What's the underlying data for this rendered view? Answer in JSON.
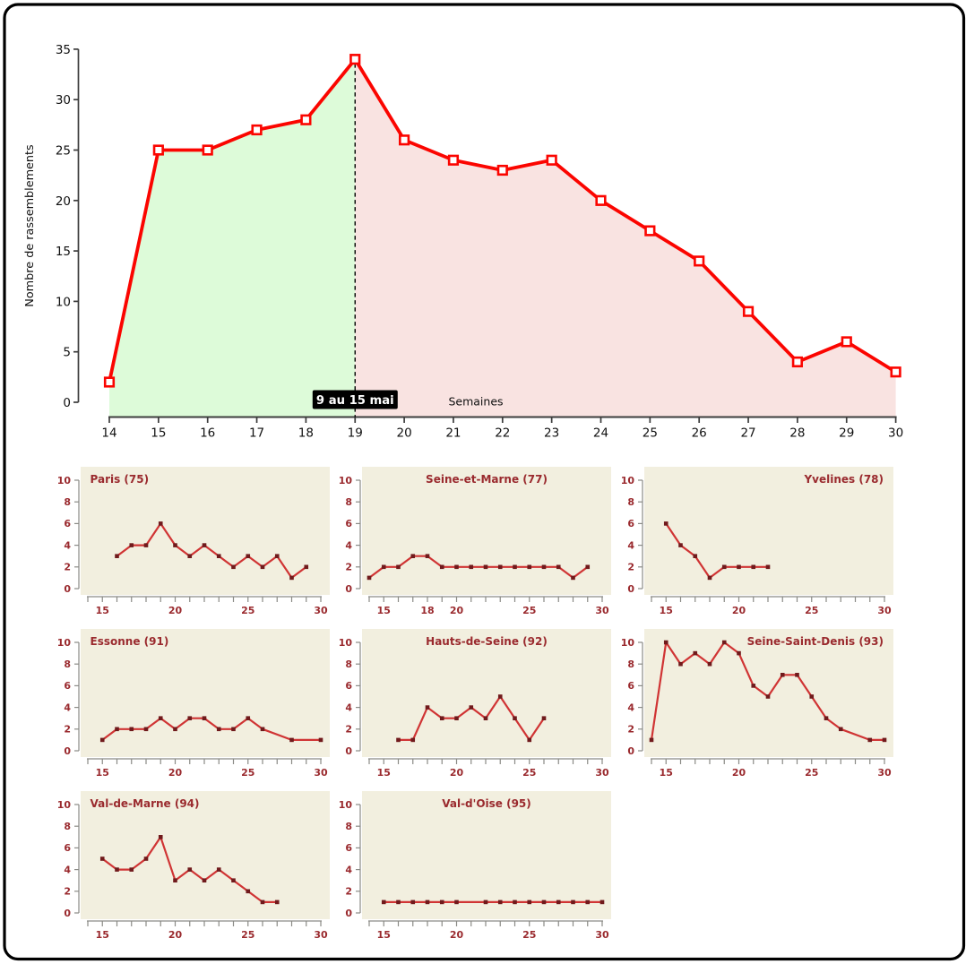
{
  "frame": {
    "background": "#ffffff",
    "border_color": "#000000"
  },
  "chart_data": [
    {
      "type": "line",
      "title": "",
      "xlabel": "Semaines",
      "ylabel": "Nombre de rassemblements",
      "x": [
        14,
        15,
        16,
        17,
        18,
        19,
        20,
        21,
        22,
        23,
        24,
        25,
        26,
        27,
        28,
        29,
        30
      ],
      "values": [
        2,
        25,
        25,
        27,
        28,
        34,
        26,
        24,
        23,
        24,
        20,
        17,
        14,
        9,
        4,
        6,
        3
      ],
      "xlim": [
        14,
        30
      ],
      "ylim": [
        0,
        35
      ],
      "xticks": [
        14,
        15,
        16,
        17,
        18,
        19,
        20,
        21,
        22,
        23,
        24,
        25,
        26,
        27,
        28,
        29,
        30
      ],
      "yticks": [
        0,
        5,
        10,
        15,
        20,
        25,
        30,
        35
      ],
      "grid": false,
      "legend": "none",
      "line_color": "#fb0500",
      "marker": "open-square",
      "marker_fill": "#ffffff",
      "axis_color": "#3c3c3c",
      "tick_label_color": "#111111",
      "annotation": {
        "label": "9 au 15 mai",
        "x": 19,
        "box_color": "#000000",
        "text_color": "#ffffff",
        "line_style": "dashed"
      },
      "regions": [
        {
          "name": "before",
          "from": 14,
          "to": 19,
          "color": "#ddfbd9"
        },
        {
          "name": "after",
          "from": 19,
          "to": 30,
          "color": "#f9e3e1"
        }
      ]
    },
    {
      "type": "small-multiples-line",
      "ylim": [
        0,
        10
      ],
      "yticks": [
        0,
        2,
        4,
        6,
        8,
        10
      ],
      "xlim": [
        14,
        30
      ],
      "grid": false,
      "panel_bg": "#f2efdf",
      "line_color": "#d03434",
      "marker": "filled-square",
      "marker_color": "#701a1c",
      "label_color": "#9a2a2e",
      "axis_color": "#8a8a86",
      "panels": [
        {
          "title": "Paris (75)",
          "title_align": "left",
          "xtick_labels": [
            15,
            20,
            25,
            30
          ],
          "points": [
            [
              16,
              3
            ],
            [
              17,
              4
            ],
            [
              18,
              4
            ],
            [
              19,
              6
            ],
            [
              20,
              4
            ],
            [
              21,
              3
            ],
            [
              22,
              4
            ],
            [
              23,
              3
            ],
            [
              24,
              2
            ],
            [
              25,
              3
            ],
            [
              26,
              2
            ],
            [
              27,
              3
            ],
            [
              28,
              1
            ],
            [
              29,
              2
            ]
          ]
        },
        {
          "title": "Seine-et-Marne (77)",
          "title_align": "center",
          "xtick_labels": [
            15,
            18,
            20,
            25,
            30
          ],
          "points": [
            [
              14,
              1
            ],
            [
              15,
              2
            ],
            [
              16,
              2
            ],
            [
              17,
              3
            ],
            [
              18,
              3
            ],
            [
              19,
              2
            ],
            [
              20,
              2
            ],
            [
              21,
              2
            ],
            [
              22,
              2
            ],
            [
              23,
              2
            ],
            [
              24,
              2
            ],
            [
              25,
              2
            ],
            [
              26,
              2
            ],
            [
              27,
              2
            ],
            [
              28,
              1
            ],
            [
              29,
              2
            ]
          ]
        },
        {
          "title": "Yvelines (78)",
          "title_align": "right",
          "xtick_labels": [
            15,
            20,
            25,
            30
          ],
          "points": [
            [
              15,
              6
            ],
            [
              16,
              4
            ],
            [
              17,
              3
            ],
            [
              18,
              1
            ],
            [
              19,
              2
            ],
            [
              20,
              2
            ],
            [
              21,
              2
            ],
            [
              22,
              2
            ]
          ]
        },
        {
          "title": "Essonne (91)",
          "title_align": "left",
          "xtick_labels": [
            15,
            20,
            25,
            30
          ],
          "points": [
            [
              15,
              1
            ],
            [
              16,
              2
            ],
            [
              17,
              2
            ],
            [
              18,
              2
            ],
            [
              19,
              3
            ],
            [
              20,
              2
            ],
            [
              21,
              3
            ],
            [
              22,
              3
            ],
            [
              23,
              2
            ],
            [
              24,
              2
            ],
            [
              25,
              3
            ],
            [
              26,
              2
            ],
            [
              28,
              1
            ],
            [
              30,
              1
            ]
          ]
        },
        {
          "title": "Hauts-de-Seine (92)",
          "title_align": "center",
          "xtick_labels": [
            15,
            20,
            25,
            30
          ],
          "points": [
            [
              16,
              1
            ],
            [
              17,
              1
            ],
            [
              18,
              4
            ],
            [
              19,
              3
            ],
            [
              20,
              3
            ],
            [
              21,
              4
            ],
            [
              22,
              3
            ],
            [
              23,
              5
            ],
            [
              24,
              3
            ],
            [
              25,
              1
            ],
            [
              26,
              3
            ]
          ]
        },
        {
          "title": "Seine-Saint-Denis (93)",
          "title_align": "right",
          "xtick_labels": [
            15,
            20,
            25,
            30
          ],
          "points": [
            [
              14,
              1
            ],
            [
              15,
              10
            ],
            [
              16,
              8
            ],
            [
              17,
              9
            ],
            [
              18,
              8
            ],
            [
              19,
              10
            ],
            [
              20,
              9
            ],
            [
              21,
              6
            ],
            [
              22,
              5
            ],
            [
              23,
              7
            ],
            [
              24,
              7
            ],
            [
              25,
              5
            ],
            [
              26,
              3
            ],
            [
              27,
              2
            ],
            [
              29,
              1
            ],
            [
              30,
              1
            ]
          ]
        },
        {
          "title": "Val-de-Marne (94)",
          "title_align": "left",
          "xtick_labels": [
            15,
            20,
            25,
            30
          ],
          "points": [
            [
              15,
              5
            ],
            [
              16,
              4
            ],
            [
              17,
              4
            ],
            [
              18,
              5
            ],
            [
              19,
              7
            ],
            [
              20,
              3
            ],
            [
              21,
              4
            ],
            [
              22,
              3
            ],
            [
              23,
              4
            ],
            [
              24,
              3
            ],
            [
              25,
              2
            ],
            [
              26,
              1
            ],
            [
              27,
              1
            ]
          ]
        },
        {
          "title": "Val-d'Oise (95)",
          "title_align": "center",
          "xtick_labels": [
            15,
            20,
            25,
            30
          ],
          "points": [
            [
              15,
              1
            ],
            [
              16,
              1
            ],
            [
              17,
              1
            ],
            [
              18,
              1
            ],
            [
              19,
              1
            ],
            [
              20,
              1
            ],
            [
              22,
              1
            ],
            [
              23,
              1
            ],
            [
              24,
              1
            ],
            [
              25,
              1
            ],
            [
              26,
              1
            ],
            [
              27,
              1
            ],
            [
              28,
              1
            ],
            [
              29,
              1
            ],
            [
              30,
              1
            ]
          ]
        }
      ]
    }
  ]
}
